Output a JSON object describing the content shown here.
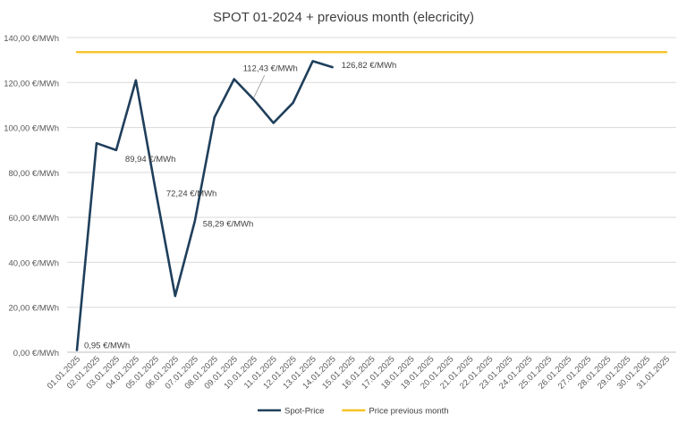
{
  "chart_data": {
    "type": "line",
    "title": "SPOT 01-2024 + previous month (elecricity)",
    "y_unit_suffix": " €/MWh",
    "ylim": [
      0,
      140
    ],
    "yticks": [
      "0,00 €/MWh",
      "20,00 €/MWh",
      "40,00 €/MWh",
      "60,00 €/MWh",
      "80,00 €/MWh",
      "100,00 €/MWh",
      "120,00 €/MWh",
      "140,00 €/MWh"
    ],
    "grid": true,
    "legend_position": "bottom",
    "categories": [
      "01.01.2025",
      "02.01.2025",
      "03.01.2025",
      "04.01.2025",
      "05.01.2025",
      "06.01.2025",
      "07.01.2025",
      "08.01.2025",
      "09.01.2025",
      "10.01.2025",
      "11.01.2025",
      "12.01.2025",
      "13.01.2025",
      "14.01.2025",
      "15.01.2025",
      "16.01.2025",
      "17.01.2025",
      "18.01.2025",
      "19.01.2025",
      "20.01.2025",
      "21.01.2025",
      "22.01.2025",
      "23.01.2025",
      "24.01.2025",
      "25.01.2025",
      "26.01.2025",
      "27.01.2025",
      "28.01.2025",
      "29.01.2025",
      "30.01.2025",
      "31.01.2025"
    ],
    "series": [
      {
        "name": "Spot-Price",
        "color": "#1f3f5b",
        "values": [
          0.95,
          93,
          89.94,
          121,
          72.24,
          25,
          58.29,
          104.5,
          121.5,
          112.43,
          102,
          111,
          129.5,
          126.82,
          null,
          null,
          null,
          null,
          null,
          null,
          null,
          null,
          null,
          null,
          null,
          null,
          null,
          null,
          null,
          null,
          null
        ]
      },
      {
        "name": "Price previous month",
        "color": "#f5c325",
        "values": [
          133.5,
          133.5,
          133.5,
          133.5,
          133.5,
          133.5,
          133.5,
          133.5,
          133.5,
          133.5,
          133.5,
          133.5,
          133.5,
          133.5,
          133.5,
          133.5,
          133.5,
          133.5,
          133.5,
          133.5,
          133.5,
          133.5,
          133.5,
          133.5,
          133.5,
          133.5,
          133.5,
          133.5,
          133.5,
          133.5,
          133.5
        ]
      }
    ],
    "data_labels": [
      {
        "index": 0,
        "text": "0,95 €/MWh"
      },
      {
        "index": 2,
        "text": "89,94 €/MWh"
      },
      {
        "index": 4,
        "text": "72,24 €/MWh"
      },
      {
        "index": 6,
        "text": "58,29 €/MWh"
      },
      {
        "index": 9,
        "text": "112,43 €/MWh"
      },
      {
        "index": 13,
        "text": "126,82 €/MWh"
      }
    ]
  }
}
